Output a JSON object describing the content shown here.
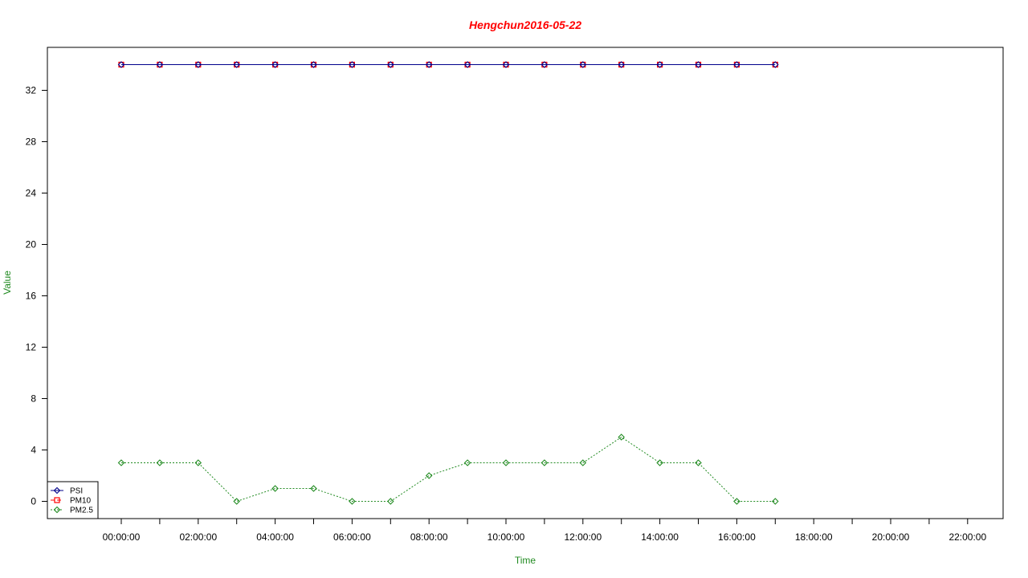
{
  "chart_data": {
    "type": "line",
    "title": "Hengchun2016-05-22",
    "xlabel": "Time",
    "ylabel": "Value",
    "colors": {
      "title": "#ff0000",
      "axis_labels": "#228b22"
    },
    "x_ticks": [
      "00:00:00",
      "02:00:00",
      "04:00:00",
      "06:00:00",
      "08:00:00",
      "10:00:00",
      "12:00:00",
      "14:00:00",
      "16:00:00",
      "18:00:00",
      "20:00:00",
      "22:00:00"
    ],
    "x_hours": [
      0,
      1,
      2,
      3,
      4,
      5,
      6,
      7,
      8,
      9,
      10,
      11,
      12,
      13,
      14,
      15,
      16,
      17
    ],
    "x_range_hours": [
      0,
      22
    ],
    "y_ticks": [
      0,
      4,
      8,
      12,
      16,
      20,
      24,
      28,
      32
    ],
    "ylim": [
      0,
      34
    ],
    "grid": false,
    "legend_position": "bottom-left",
    "series": [
      {
        "name": "PSI",
        "color": "#00008b",
        "marker": "diamond",
        "line": "solid",
        "values": [
          34,
          34,
          34,
          34,
          34,
          34,
          34,
          34,
          34,
          34,
          34,
          34,
          34,
          34,
          34,
          34,
          34,
          34
        ]
      },
      {
        "name": "PM10",
        "color": "#ff0000",
        "marker": "square",
        "line": "dashed",
        "values": [
          34,
          34,
          34,
          34,
          34,
          34,
          34,
          34,
          34,
          34,
          34,
          34,
          34,
          34,
          34,
          34,
          34,
          34
        ]
      },
      {
        "name": "PM2.5",
        "color": "#228b22",
        "marker": "diamond",
        "line": "dotted",
        "values": [
          3,
          3,
          3,
          0,
          1,
          1,
          0,
          0,
          2,
          3,
          3,
          3,
          3,
          5,
          3,
          3,
          0,
          0
        ]
      }
    ]
  }
}
